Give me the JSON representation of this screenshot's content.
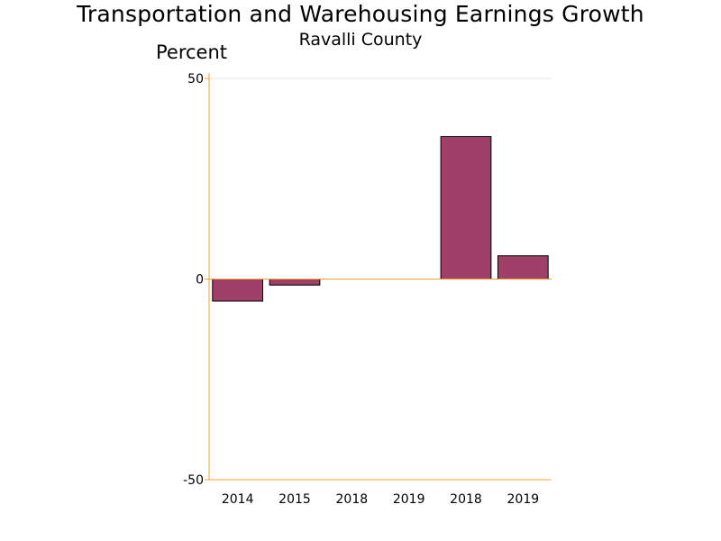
{
  "chart_data": {
    "type": "bar",
    "title": "Transportation and Warehousing Earnings Growth",
    "subtitle": "Ravalli County",
    "ylabel": "Percent",
    "xlabel": "",
    "categories": [
      "2014",
      "2015",
      "2018",
      "2019",
      "2018",
      "2019"
    ],
    "values": [
      -5.5,
      -1.5,
      0,
      0,
      35.5,
      5.8
    ],
    "ylim": [
      -50,
      50
    ],
    "yticks": [
      "-50",
      "0",
      "50"
    ],
    "grid": false,
    "legend": "none",
    "colors": {
      "bar_fill": "#a04068",
      "bar_stroke": "#000000",
      "axis": "#f0a030",
      "zero_line": "#f0a030",
      "top_line": "#e6e6e6"
    }
  }
}
